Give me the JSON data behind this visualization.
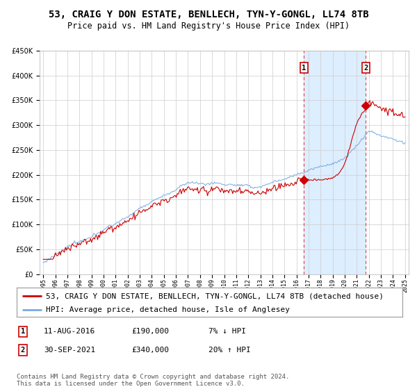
{
  "title": "53, CRAIG Y DON ESTATE, BENLLECH, TYN-Y-GONGL, LL74 8TB",
  "subtitle": "Price paid vs. HM Land Registry's House Price Index (HPI)",
  "legend_line1": "53, CRAIG Y DON ESTATE, BENLLECH, TYN-Y-GONGL, LL74 8TB (detached house)",
  "legend_line2": "HPI: Average price, detached house, Isle of Anglesey",
  "annotation1_label": "1",
  "annotation1_date": "11-AUG-2016",
  "annotation1_price": "£190,000",
  "annotation1_hpi": "7% ↓ HPI",
  "annotation2_label": "2",
  "annotation2_date": "30-SEP-2021",
  "annotation2_price": "£340,000",
  "annotation2_hpi": "20% ↑ HPI",
  "footer": "Contains HM Land Registry data © Crown copyright and database right 2024.\nThis data is licensed under the Open Government Licence v3.0.",
  "year_start": 1995,
  "year_end": 2025,
  "ylim_min": 0,
  "ylim_max": 450000,
  "sale1_year": 2016.62,
  "sale1_value": 190000,
  "sale2_year": 2021.75,
  "sale2_value": 340000,
  "red_color": "#cc0000",
  "blue_color": "#7aaadd",
  "shade_color": "#ddeeff",
  "background_color": "#ffffff",
  "grid_color": "#cccccc",
  "vline_color": "#dd4444",
  "title_fontsize": 10,
  "subtitle_fontsize": 8.5,
  "axis_fontsize": 7,
  "legend_fontsize": 8,
  "annotation_fontsize": 8,
  "footer_fontsize": 6.5
}
